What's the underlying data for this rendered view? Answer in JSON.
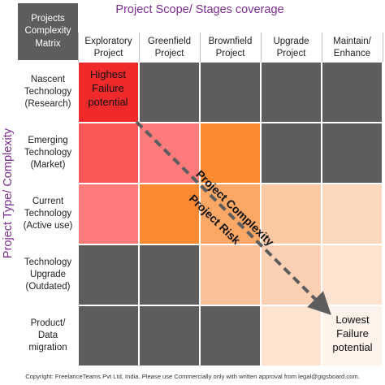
{
  "corner_label": "Projects\nComplexity\nMatrix",
  "x_axis_title": "Project Scope/ Stages coverage",
  "y_axis_title": "Project Type/ Complexity",
  "columns": [
    "Exploratory\nProject",
    "Greenfield\nProject",
    "Brownfield\nProject",
    "Upgrade\nProject",
    "Maintain/\nEnhance"
  ],
  "rows": [
    {
      "label": "Nascent\nTechnology\n(Research)",
      "cells": [
        "#f02a2a",
        "#5d5d5d",
        "#5d5d5d",
        "#5d5d5d",
        "#5d5d5d"
      ]
    },
    {
      "label": "Emerging\nTechnology\n(Market)",
      "cells": [
        "#fa5858",
        "#fd7b7b",
        "#fb8a33",
        "#5d5d5d",
        "#5d5d5d"
      ]
    },
    {
      "label": "Current\nTechnology\n(Active use)",
      "cells": [
        "#fd7b7b",
        "#fb8a33",
        "#fba765",
        "#fbc9a4",
        "#fcd8bf"
      ]
    },
    {
      "label": "Technology\nUpgrade\n(Outdated)",
      "cells": [
        "#5d5d5d",
        "#5d5d5d",
        "#fbc19a",
        "#fcd1b3",
        "#fde3d0"
      ]
    },
    {
      "label": "Product/\nData\nmigration",
      "cells": [
        "#5d5d5d",
        "#5d5d5d",
        "#5d5d5d",
        "#fde3d0",
        "#fef3ea"
      ]
    }
  ],
  "annotations": {
    "highest": "Highest\nFailure\npotential",
    "lowest": "Lowest\nFailure\npotential",
    "arrow_label_1": "Project Complexity",
    "arrow_label_2": "Project Risk"
  },
  "footer": "Copyright: FreelanceTeams Pvt Ltd, India. Please use Commercially only with written approval from legal@gigsboard.com."
}
